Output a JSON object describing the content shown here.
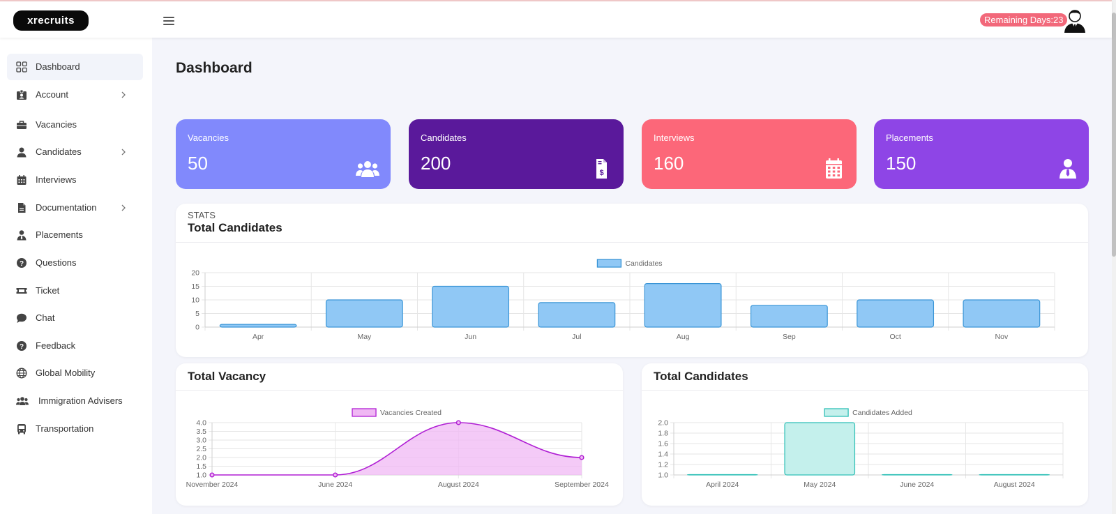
{
  "header": {
    "logo_text": "xrecruits",
    "remaining_days": "Remaining Days:23"
  },
  "sidebar": {
    "items": [
      {
        "label": "Dashboard",
        "icon": "grid-icon",
        "has_submenu": false,
        "active": true
      },
      {
        "label": "Account",
        "icon": "id-card-icon",
        "has_submenu": true
      },
      {
        "label": "Vacancies",
        "icon": "briefcase-icon",
        "has_submenu": false
      },
      {
        "label": "Candidates",
        "icon": "user-icon",
        "has_submenu": true
      },
      {
        "label": "Interviews",
        "icon": "calendar-icon",
        "has_submenu": false
      },
      {
        "label": "Documentation",
        "icon": "file-icon",
        "has_submenu": true
      },
      {
        "label": "Placements",
        "icon": "user-tie-icon",
        "has_submenu": false
      },
      {
        "label": "Questions",
        "icon": "question-circle-icon",
        "has_submenu": false
      },
      {
        "label": "Ticket",
        "icon": "ticket-icon",
        "has_submenu": false
      },
      {
        "label": "Chat",
        "icon": "chat-bubble-icon",
        "has_submenu": false
      },
      {
        "label": "Feedback",
        "icon": "question-circle-icon",
        "has_submenu": false
      },
      {
        "label": "Global Mobility",
        "icon": "globe-icon",
        "has_submenu": false
      },
      {
        "label": "Immigration Advisers",
        "icon": "users-icon",
        "has_submenu": false
      },
      {
        "label": "Transportation",
        "icon": "bus-icon",
        "has_submenu": false
      }
    ]
  },
  "main": {
    "page_title": "Dashboard",
    "stat_cards": [
      {
        "label": "Vacancies",
        "value": "50",
        "icon": "users-icon",
        "color": "#8189fc"
      },
      {
        "label": "Candidates",
        "value": "200",
        "icon": "file-invoice-dollar-icon",
        "color": "#5a199b"
      },
      {
        "label": "Interviews",
        "value": "160",
        "icon": "calendar-icon",
        "color": "#fc6779"
      },
      {
        "label": "Placements",
        "value": "150",
        "icon": "user-tie-icon",
        "color": "#8e45e6"
      }
    ],
    "stats_panel": {
      "subtitle": "STATS",
      "title": "Total Candidates"
    },
    "vacancy_panel": {
      "title": "Total Vacancy"
    },
    "candidates_panel": {
      "title": "Total Candidates"
    }
  },
  "chart_data": [
    {
      "type": "bar",
      "title": "Total Candidates",
      "categories": [
        "Apr",
        "May",
        "Jun",
        "Jul",
        "Aug",
        "Sep",
        "Oct",
        "Nov"
      ],
      "series": [
        {
          "name": "Candidates",
          "values": [
            1,
            10,
            15,
            9,
            16,
            8,
            10,
            10
          ]
        }
      ],
      "ylim": [
        0,
        20
      ],
      "yticks": [
        "0",
        "5",
        "10",
        "15",
        "20"
      ],
      "legend": "top",
      "grid": true,
      "color": "#90c8f5",
      "border_color": "#3a95d6"
    },
    {
      "type": "area",
      "title": "Total Vacancy",
      "categories": [
        "November 2024",
        "June 2024",
        "August 2024",
        "September 2024"
      ],
      "series": [
        {
          "name": "Vacancies Created",
          "values": [
            1,
            1,
            4,
            2
          ]
        }
      ],
      "ylim": [
        1,
        4
      ],
      "yticks": [
        "1.0",
        "1.5",
        "2.0",
        "2.5",
        "3.0",
        "3.5",
        "4.0"
      ],
      "legend": "top",
      "grid": true,
      "color": "#f0b8f4",
      "border_color": "#b01fd4"
    },
    {
      "type": "bar",
      "title": "Total Candidates",
      "categories": [
        "April 2024",
        "May 2024",
        "June 2024",
        "August 2024"
      ],
      "series": [
        {
          "name": "Candidates Added",
          "values": [
            1,
            2,
            1,
            1
          ]
        }
      ],
      "ylim": [
        1,
        2
      ],
      "yticks": [
        "1.0",
        "1.2",
        "1.4",
        "1.6",
        "1.8",
        "2.0"
      ],
      "legend": "top",
      "grid": true,
      "color": "#c4f0ec",
      "border_color": "#2fbfb6"
    }
  ]
}
